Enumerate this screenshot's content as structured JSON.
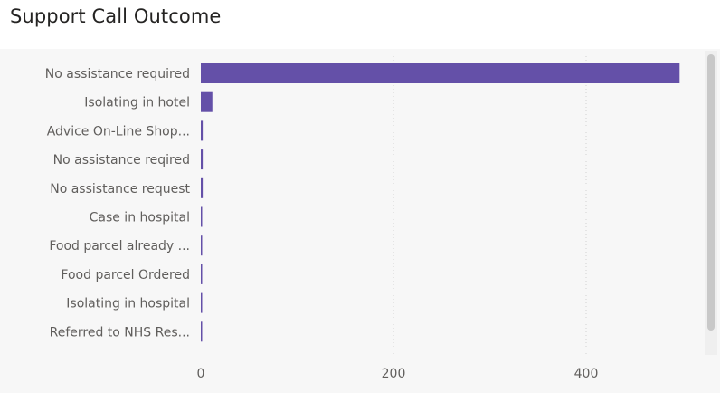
{
  "chart_data": {
    "type": "bar",
    "orientation": "horizontal",
    "title": "Support Call Outcome",
    "xlabel": "",
    "ylabel": "",
    "categories": [
      "No assistance required",
      "Isolating in hotel",
      "Advice On-Line Shop...",
      "No assistance reqired",
      "No assistance request",
      "Case in hospital",
      "Food parcel already ...",
      "Food parcel Ordered",
      "Isolating in hospital",
      "Referred to NHS Res..."
    ],
    "values": [
      497,
      12,
      2,
      2,
      2,
      1,
      1,
      1,
      1,
      1
    ],
    "xlim": [
      0,
      500
    ],
    "xticks": [
      0,
      200,
      400
    ],
    "grid": true,
    "legend": "none",
    "bar_color": "#6450a8"
  },
  "colors": {
    "bar": "#6450a8",
    "gridline": "#d0d0d0",
    "axis_text": "#605e5c",
    "title_text": "#252423"
  }
}
